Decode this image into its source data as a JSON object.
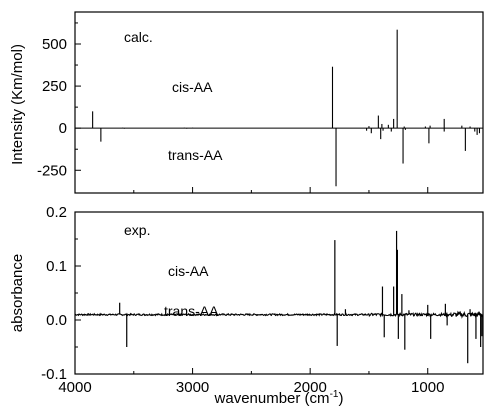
{
  "chart_data": [
    {
      "type": "line",
      "panel": "top",
      "title": "",
      "ylabel": "Intensity (Km/mol)",
      "xlim": [
        4000,
        530
      ],
      "ylim": [
        -385,
        690
      ],
      "yticks": [
        -250,
        0,
        250,
        500
      ],
      "ytick_labels": [
        "-250",
        "0",
        "250",
        "500"
      ],
      "grid": false,
      "annotations": [
        "calc.",
        "cis-AA",
        "trans-AA"
      ],
      "series": [
        {
          "name": "cis-AA",
          "x": [
            3850,
            3595,
            3070,
            3000,
            1810,
            1500,
            1420,
            1390,
            1335,
            1290,
            1260,
            1200,
            1020,
            980,
            860,
            710,
            640
          ],
          "y": [
            100,
            3,
            3,
            3,
            365,
            12,
            75,
            25,
            20,
            55,
            585,
            10,
            10,
            15,
            55,
            15,
            10
          ]
        },
        {
          "name": "trans-AA",
          "x": [
            3780,
            3580,
            3050,
            1780,
            1520,
            1480,
            1400,
            1380,
            1310,
            1210,
            1190,
            990,
            860,
            680,
            600,
            580,
            560
          ],
          "y": [
            -80,
            -3,
            -3,
            -345,
            -15,
            -30,
            -65,
            -15,
            -20,
            -210,
            -10,
            -90,
            -20,
            -135,
            -20,
            -40,
            -30
          ]
        }
      ]
    },
    {
      "type": "line",
      "panel": "bottom",
      "title": "",
      "xlabel": "wavenumber (cm-1)",
      "ylabel": "absorbance",
      "xlim": [
        4000,
        530
      ],
      "ylim": [
        -0.1,
        0.2
      ],
      "xticks": [
        4000,
        3000,
        2000,
        1000
      ],
      "xtick_labels": [
        "4000",
        "3000",
        "2000",
        "1000"
      ],
      "yticks": [
        -0.1,
        0.0,
        0.1,
        0.2
      ],
      "ytick_labels": [
        "-0.1",
        "0.0",
        "0.1",
        "0.2"
      ],
      "grid": false,
      "baseline": 0.01,
      "annotations": [
        "exp.",
        "cis-AA",
        "trans-AA"
      ],
      "peaks": {
        "x": [
          3620,
          3560,
          1790,
          1770,
          1700,
          1385,
          1370,
          1290,
          1265,
          1258,
          1250,
          1220,
          1195,
          1160,
          1000,
          975,
          850,
          835,
          660,
          640,
          590,
          570,
          550,
          540
        ],
        "y": [
          0.032,
          -0.05,
          0.148,
          -0.048,
          0.02,
          0.062,
          -0.032,
          0.062,
          0.165,
          0.13,
          -0.035,
          0.048,
          -0.055,
          0.018,
          0.028,
          -0.035,
          0.03,
          -0.01,
          -0.08,
          0.02,
          -0.035,
          0.012,
          -0.05,
          -0.03
        ]
      }
    }
  ]
}
